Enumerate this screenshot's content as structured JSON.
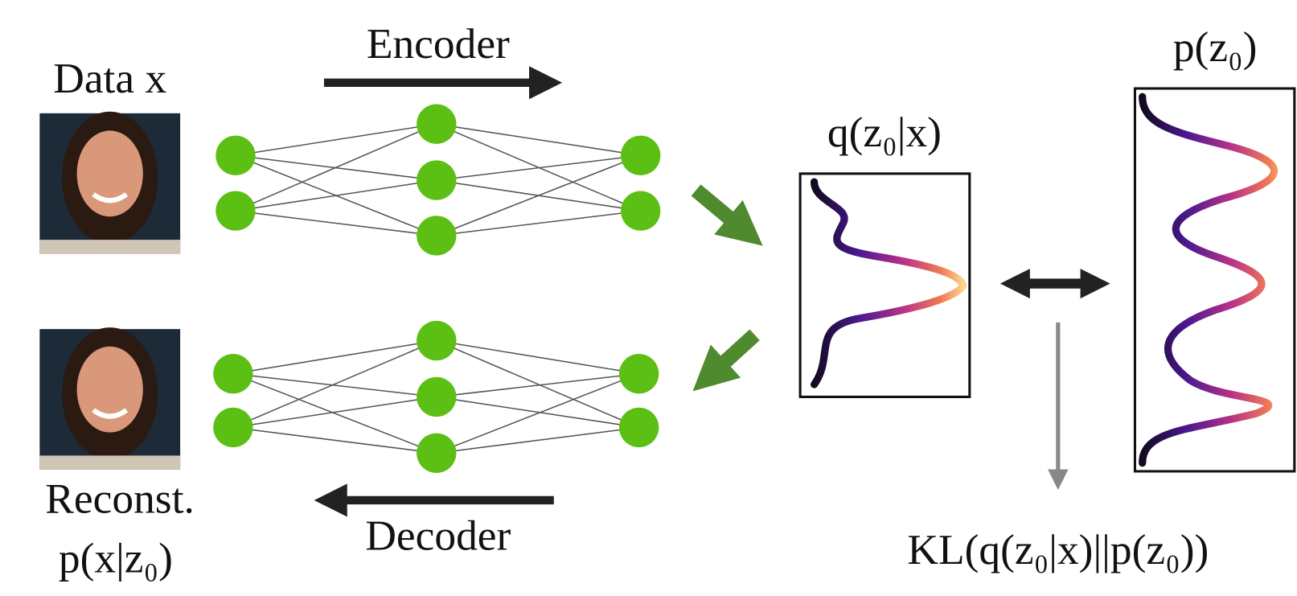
{
  "labels": {
    "data": "Data x",
    "encoder": "Encoder",
    "posterior": "q(z₀|x)",
    "prior": "p(z₀)",
    "reconst": "Reconst.",
    "likelihood": "p(x|z₀)",
    "decoder": "Decoder",
    "kl": "KL(q(z₀|x)||p(z₀))"
  }
}
